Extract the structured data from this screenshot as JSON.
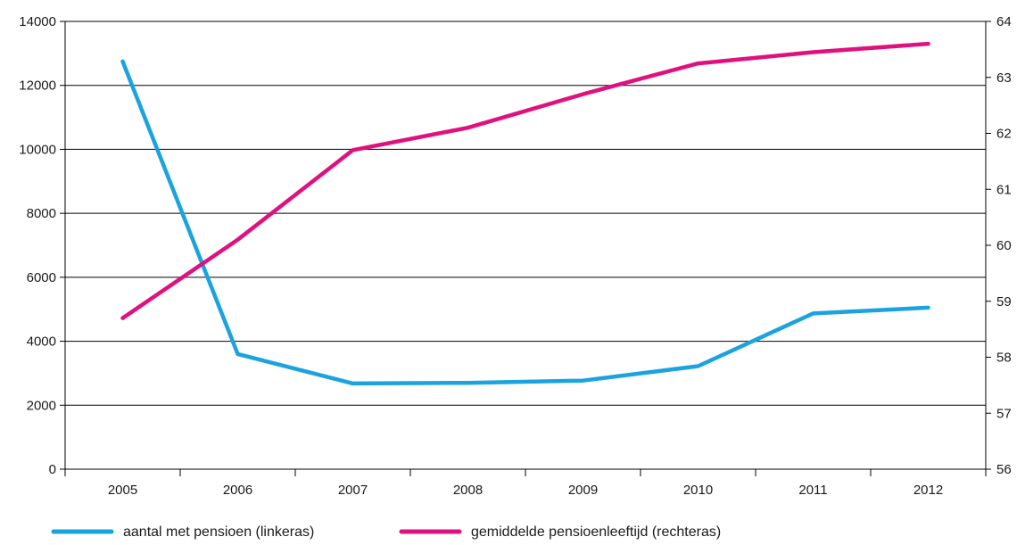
{
  "chart_data": {
    "type": "line",
    "title": "",
    "xlabel": "",
    "ylabel_left": "",
    "ylabel_right": "",
    "categories": [
      "2005",
      "2006",
      "2007",
      "2008",
      "2009",
      "2010",
      "2011",
      "2012"
    ],
    "y_left": {
      "min": 0,
      "max": 14000,
      "ticks": [
        0,
        2000,
        4000,
        6000,
        8000,
        10000,
        12000,
        14000
      ]
    },
    "y_right": {
      "min": 56,
      "max": 64,
      "ticks": [
        56,
        57,
        58,
        59,
        60,
        61,
        62,
        63,
        64
      ]
    },
    "grid": true,
    "legend_position": "bottom",
    "series": [
      {
        "name": "aantal met pensioen (linkeras)",
        "axis": "left",
        "color": "#1aa3de",
        "values": [
          12750,
          3600,
          2680,
          2700,
          2770,
          3220,
          4870,
          5050
        ]
      },
      {
        "name": "gemiddelde pensioenleeftijd (rechteras)",
        "axis": "right",
        "color": "#e0117e",
        "values": [
          58.7,
          60.1,
          61.7,
          62.1,
          62.7,
          63.25,
          63.45,
          63.6
        ]
      }
    ]
  }
}
